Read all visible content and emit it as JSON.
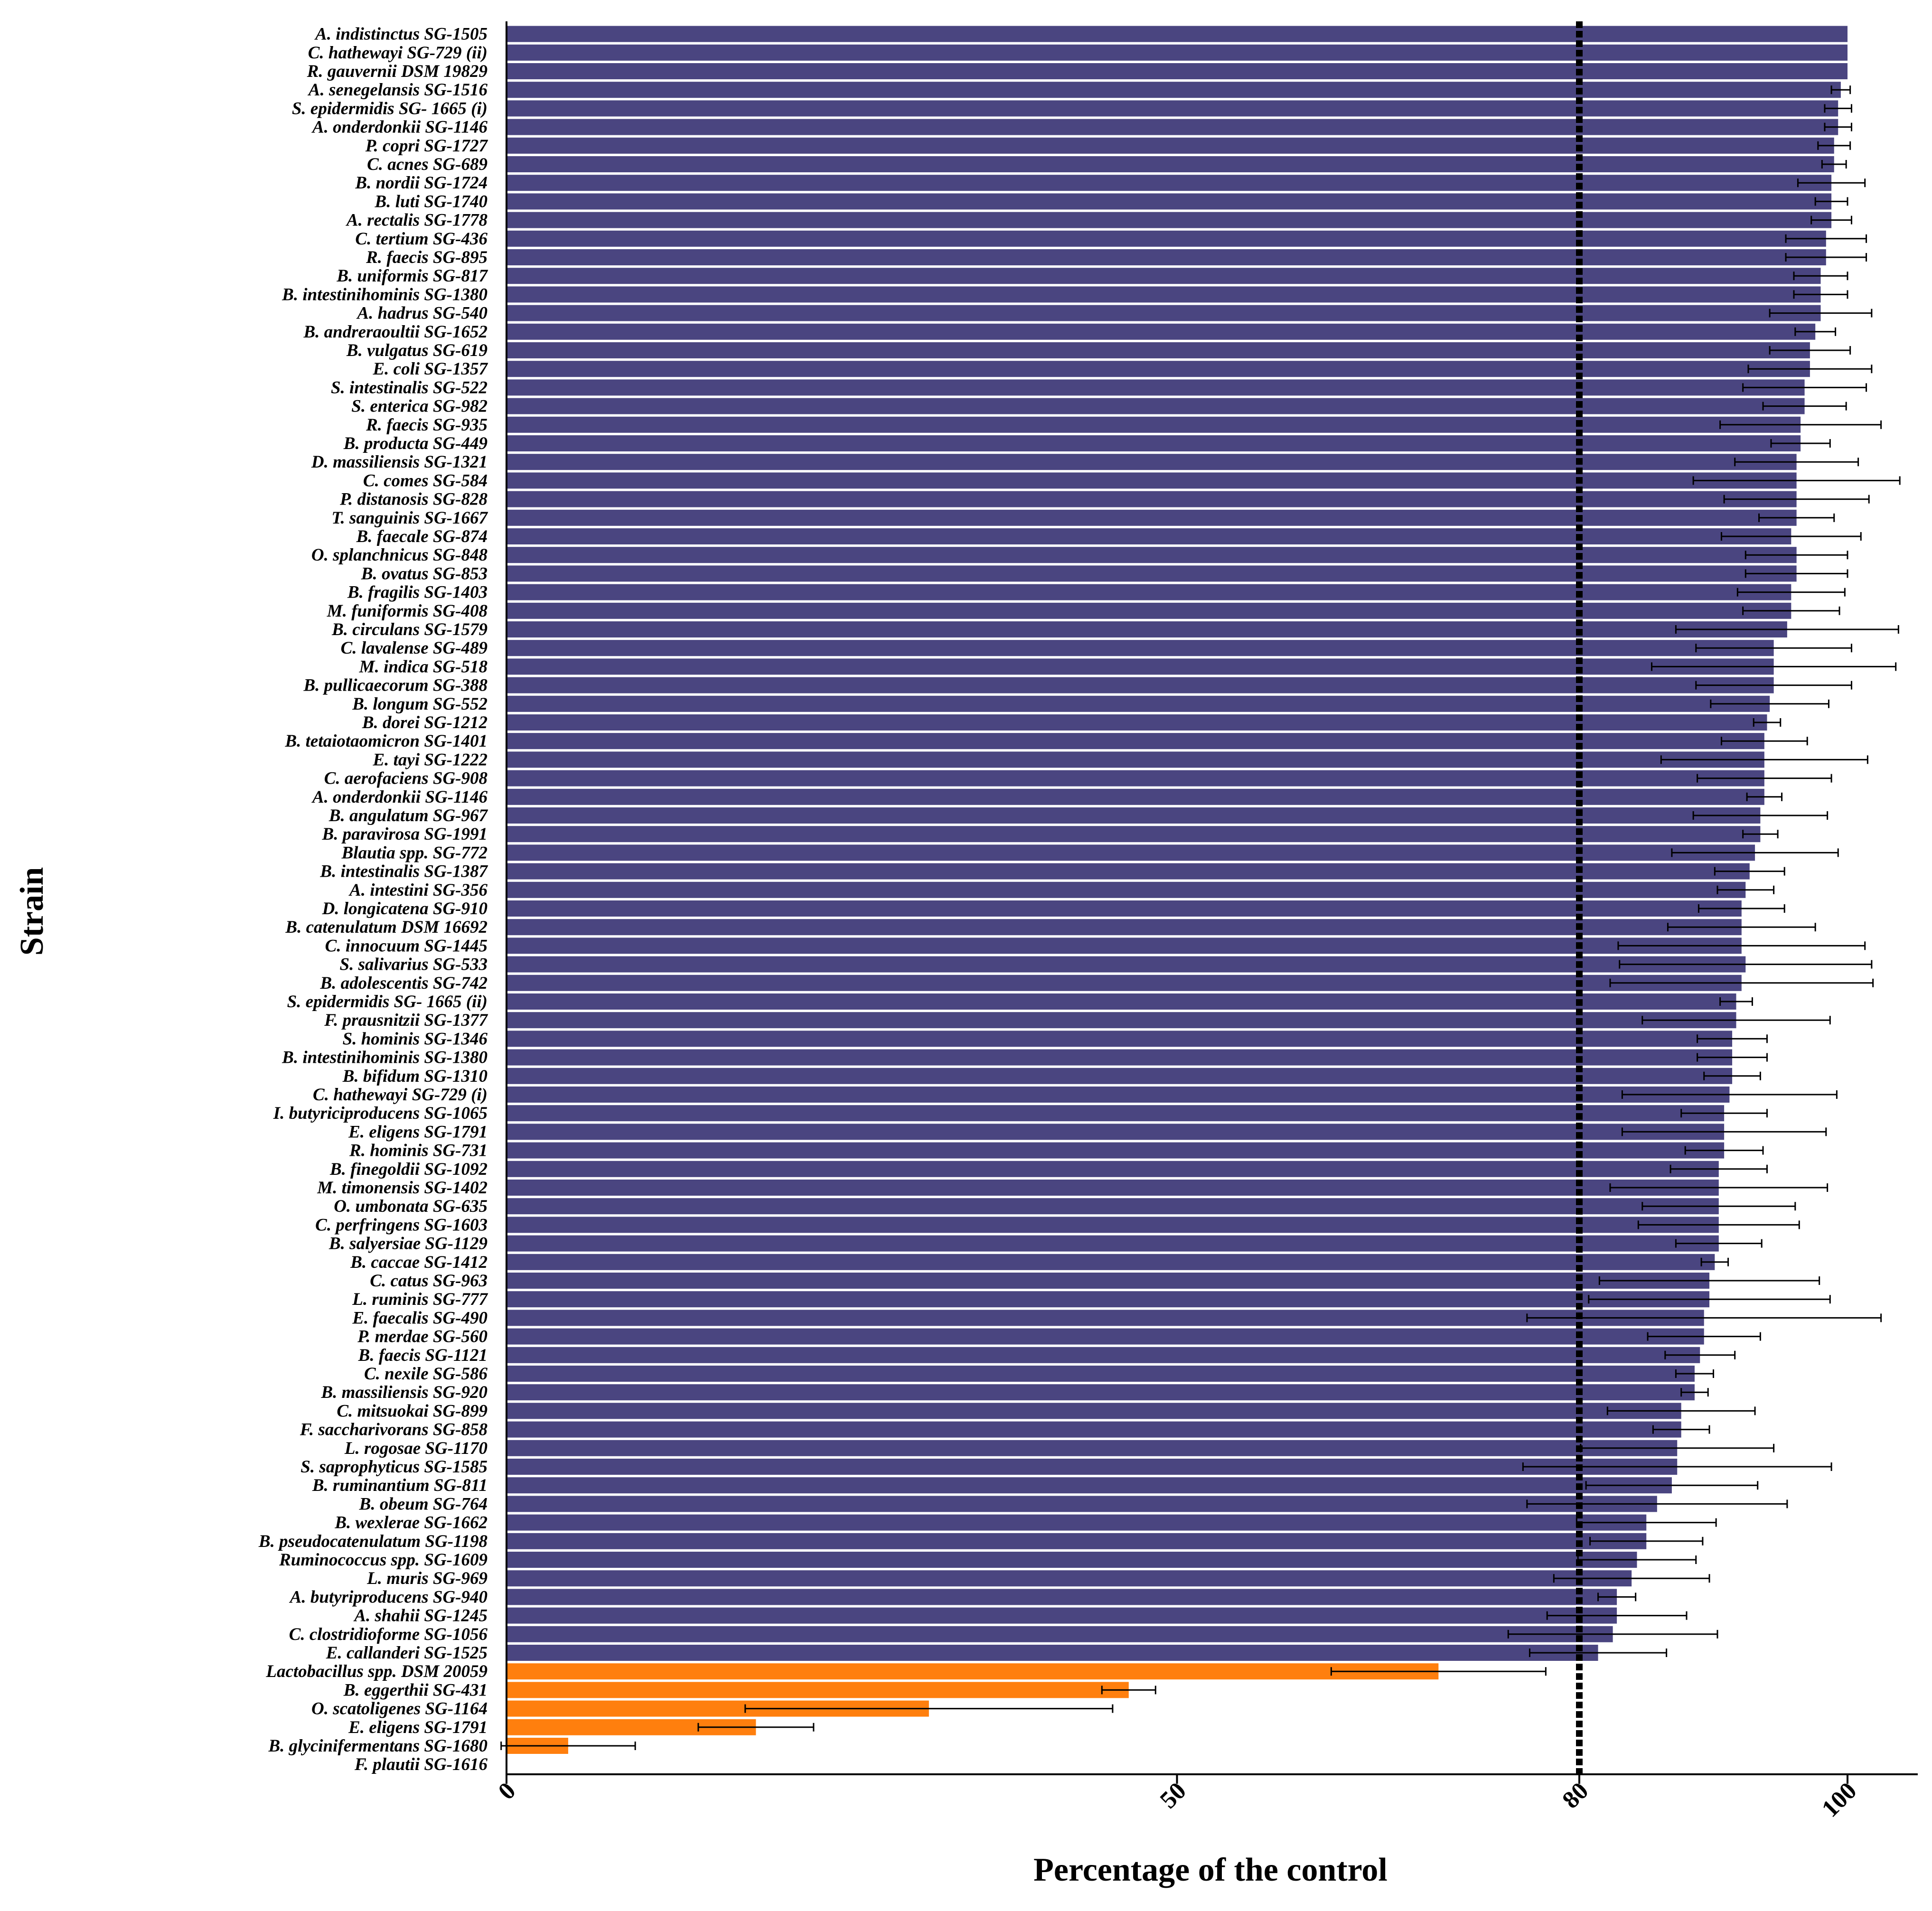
{
  "chart_data": {
    "type": "bar",
    "orientation": "horizontal",
    "xlabel": "Percentage of the control",
    "ylabel": "Strain",
    "xlim": [
      0,
      105
    ],
    "xticks": [
      0,
      50,
      80,
      100
    ],
    "reference_line": 80,
    "colors": {
      "above": "#4a4580",
      "below": "#ff7f0e",
      "reference": "#000000",
      "error": "#000000"
    },
    "categories": [
      "A. indistinctus SG-1505",
      "C. hathewayi SG-729 (ii)",
      "R. gauvernii DSM 19829",
      "A. senegelansis SG-1516",
      "S. epidermidis SG- 1665 (i)",
      "A. onderdonkii SG-1146",
      "P. copri SG-1727",
      "C. acnes SG-689",
      "B. nordii SG-1724",
      "B. luti SG-1740",
      "A. rectalis SG-1778",
      "C. tertium SG-436",
      "R. faecis SG-895",
      "B. uniformis SG-817",
      "B. intestinihominis SG-1380",
      "A. hadrus SG-540",
      "B. andreraoultii SG-1652",
      "B. vulgatus SG-619",
      "E. coli SG-1357",
      "S. intestinalis SG-522",
      "S. enterica SG-982",
      "R. faecis SG-935",
      "B. producta SG-449",
      "D. massiliensis SG-1321",
      "C. comes SG-584",
      "P. distanosis SG-828",
      "T. sanguinis SG-1667",
      "B. faecale SG-874",
      "O. splanchnicus SG-848",
      "B. ovatus SG-853",
      "B. fragilis SG-1403",
      "M. funiformis SG-408",
      "B. circulans SG-1579",
      "C. lavalense SG-489",
      "M. indica SG-518",
      "B. pullicaecorum SG-388",
      "B. longum SG-552",
      "B. dorei SG-1212",
      "B. tetaiotaomicron SG-1401",
      "E. tayi SG-1222",
      "C. aerofaciens SG-908",
      "A. onderdonkii SG-1146",
      "B. angulatum SG-967",
      "B. paravirosa SG-1991",
      "Blautia spp. SG-772",
      "B. intestinalis SG-1387",
      "A. intestini SG-356",
      "D. longicatena SG-910",
      "B. catenulatum DSM 16692",
      "C. innocuum SG-1445",
      "S. salivarius SG-533",
      "B. adolescentis SG-742",
      "S. epidermidis SG- 1665 (ii)",
      "F. prausnitzii SG-1377",
      "S. hominis SG-1346",
      "B. intestinihominis SG-1380",
      "B. bifidum SG-1310",
      "C. hathewayi SG-729 (i)",
      "I. butyriciproducens SG-1065",
      "E. eligens SG-1791",
      "R. hominis SG-731",
      "B. finegoldii SG-1092",
      "M. timonensis SG-1402",
      "O. umbonata SG-635",
      "C. perfringens SG-1603",
      "B.  salyersiae SG-1129",
      "B. caccae SG-1412",
      "C. catus SG-963",
      "L. ruminis SG-777",
      "E. faecalis SG-490",
      "P. merdae SG-560",
      "B. faecis SG-1121",
      "C. nexile SG-586",
      "B. massiliensis SG-920",
      "C. mitsuokai SG-899",
      "F. saccharivorans SG-858",
      "L. rogosae SG-1170",
      "S. saprophyticus SG-1585",
      "B. ruminantium SG-811",
      "B. obeum SG-764",
      "B. wexlerae SG-1662",
      "B. pseudocatenulatum SG-1198",
      "Ruminococcus spp. SG-1609",
      "L. muris SG-969",
      "A. butyriproducens SG-940",
      "A. shahii SG-1245",
      "C. clostridioforme SG-1056",
      "E. callanderi SG-1525",
      "Lactobacillus spp. DSM 20059",
      "B. eggerthii SG-431",
      "O. scatoligenes SG-1164",
      "E. eligens SG-1791",
      "B. glycinifermentans SG-1680",
      "F. plautii SG-1616"
    ],
    "values": [
      100,
      100,
      100,
      99.5,
      99.3,
      99.3,
      99,
      99,
      98.8,
      98.8,
      98.8,
      98.4,
      98.4,
      98,
      98,
      98,
      97.6,
      97.2,
      97.2,
      96.8,
      96.8,
      96.5,
      96.5,
      96.2,
      96.2,
      96.2,
      96.2,
      95.8,
      96.2,
      96.2,
      95.8,
      95.8,
      95.5,
      94.5,
      94.5,
      94.5,
      94.2,
      94,
      93.8,
      93.8,
      93.8,
      93.8,
      93.5,
      93.5,
      93.1,
      92.7,
      92.4,
      92.1,
      92.1,
      92.1,
      92.4,
      92.1,
      91.7,
      91.7,
      91.4,
      91.4,
      91.4,
      91.2,
      90.8,
      90.8,
      90.8,
      90.4,
      90.4,
      90.4,
      90.4,
      90.4,
      90.1,
      89.7,
      89.7,
      89.3,
      89.3,
      89,
      88.6,
      88.6,
      87.6,
      87.6,
      87.3,
      87.3,
      86.9,
      85.8,
      85,
      85,
      84.3,
      83.9,
      82.8,
      82.8,
      82.5,
      81.4,
      69.5,
      46.4,
      31.5,
      18.6,
      4.6,
      0
    ],
    "errors": [
      0,
      0,
      0,
      0.7,
      1,
      1,
      1.2,
      0.9,
      2.5,
      1.2,
      1.5,
      3,
      3,
      2,
      2,
      3.8,
      1.5,
      3,
      4.6,
      4.6,
      3.1,
      6,
      2.2,
      4.6,
      7.7,
      5.4,
      2.8,
      5.2,
      3.8,
      3.8,
      4,
      3.6,
      8.3,
      5.8,
      9.1,
      5.8,
      4.4,
      1,
      3.2,
      7.7,
      5,
      1.3,
      5,
      1.3,
      6.2,
      2.6,
      2.1,
      3.2,
      5.5,
      9.2,
      9.4,
      9.8,
      1.2,
      7,
      2.6,
      2.6,
      2.1,
      8,
      3.2,
      7.6,
      2.9,
      3.6,
      8.1,
      5.7,
      6,
      3.2,
      1,
      8.2,
      9,
      13.2,
      4.2,
      2.6,
      1.4,
      1,
      5.5,
      2.1,
      7.2,
      11.5,
      6.4,
      9.7,
      5.2,
      4.2,
      4.4,
      5.8,
      1.4,
      5.2,
      7.8,
      5.1,
      8,
      2,
      13.7,
      4.3,
      5,
      0
    ]
  }
}
